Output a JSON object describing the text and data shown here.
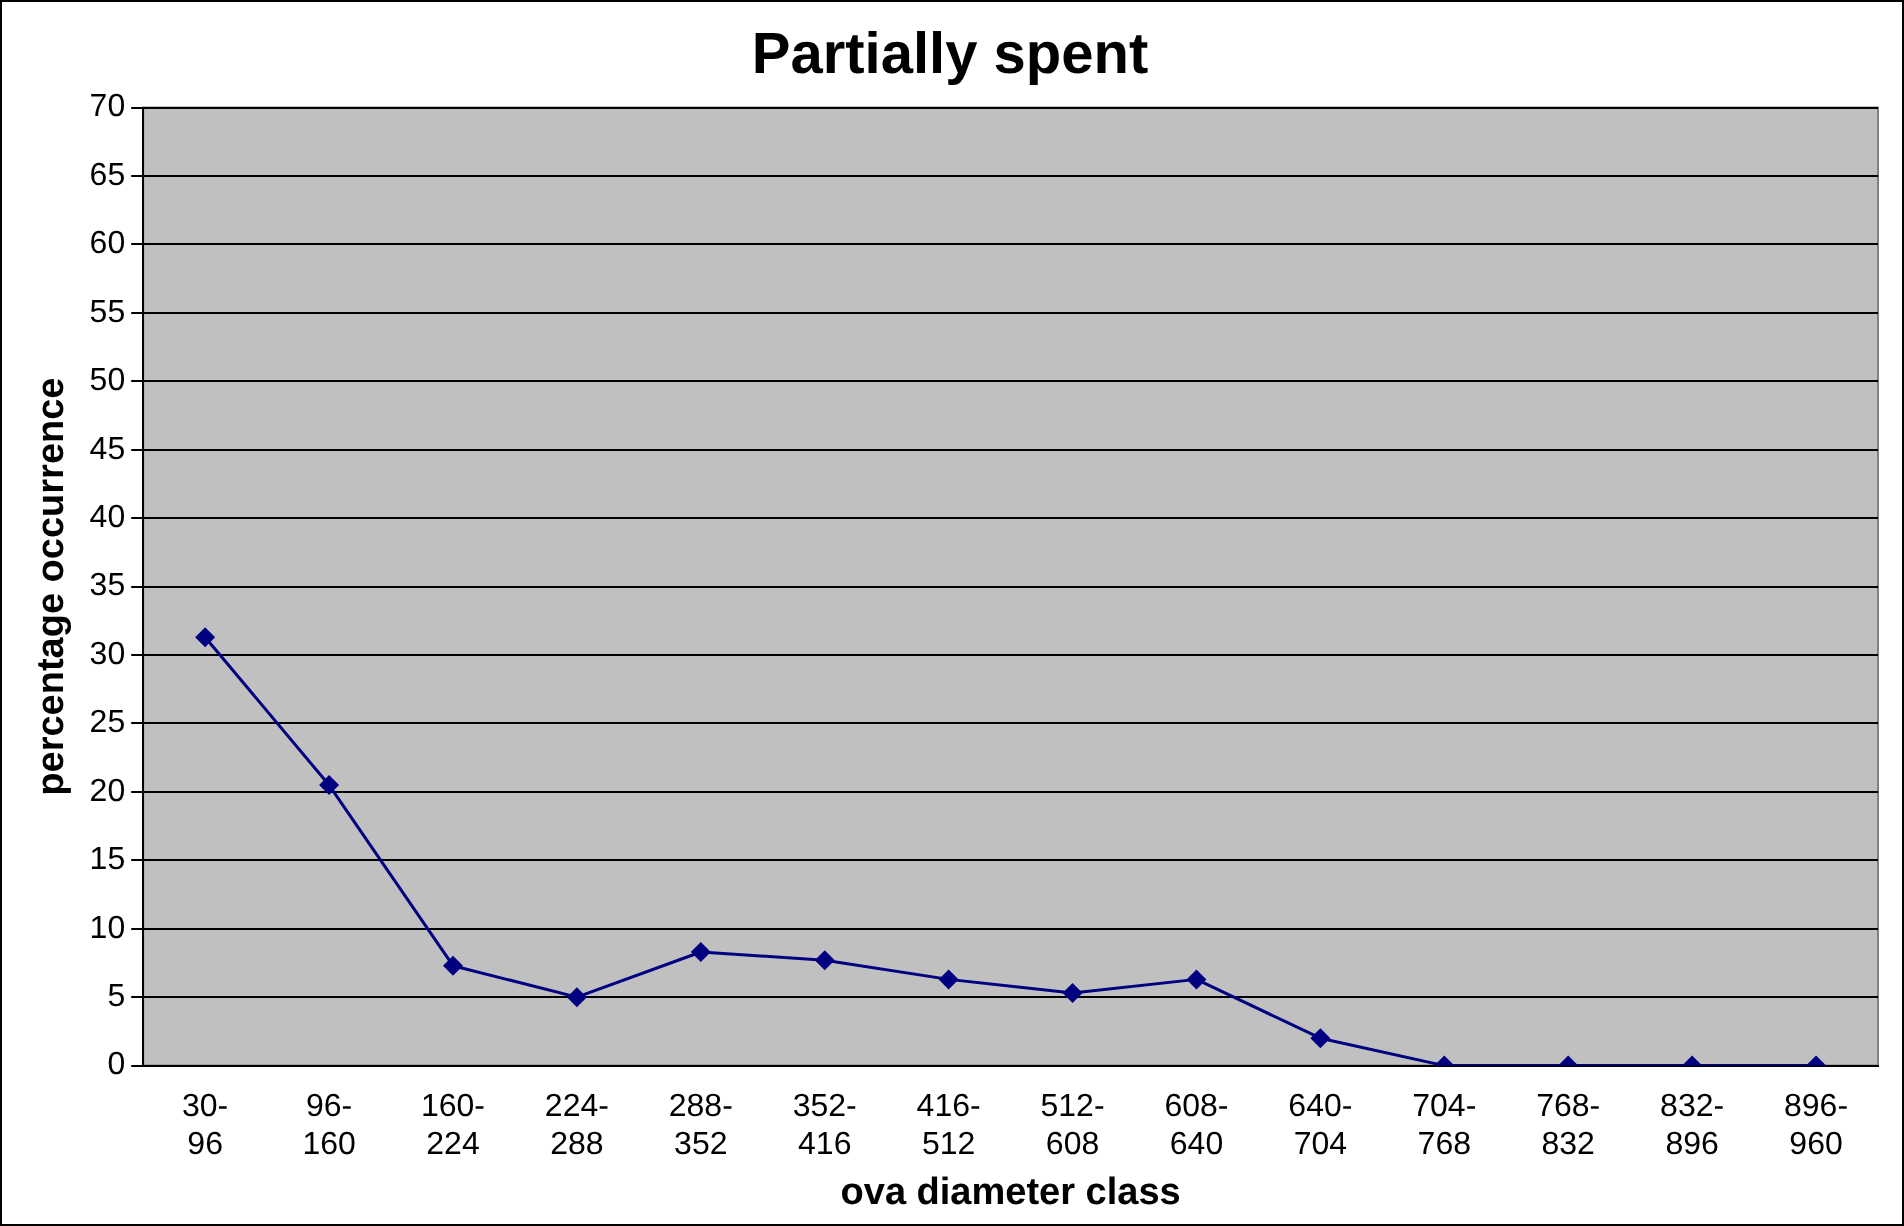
{
  "chart_data": {
    "type": "line",
    "title": "Partially spent",
    "xlabel": "ova diameter class",
    "ylabel": "percentage occurrence",
    "categories": [
      "30-96",
      "96-160",
      "160-224",
      "224-288",
      "288-352",
      "352-416",
      "416-512",
      "512-608",
      "608-640",
      "640-704",
      "704-768",
      "768-832",
      "832-896",
      "896-960"
    ],
    "series": [
      {
        "color": "#000080",
        "values": [
          31.3,
          20.5,
          7.3,
          5,
          8.3,
          7.7,
          6.3,
          5.3,
          6.3,
          2,
          0,
          0,
          0,
          0
        ]
      }
    ],
    "ylim": [
      0,
      70
    ],
    "yticks": [
      0,
      5,
      10,
      15,
      20,
      25,
      30,
      35,
      40,
      45,
      50,
      55,
      60,
      65,
      70
    ],
    "grid": "y",
    "legend": false,
    "marker": "diamond",
    "line_style": "solid"
  }
}
